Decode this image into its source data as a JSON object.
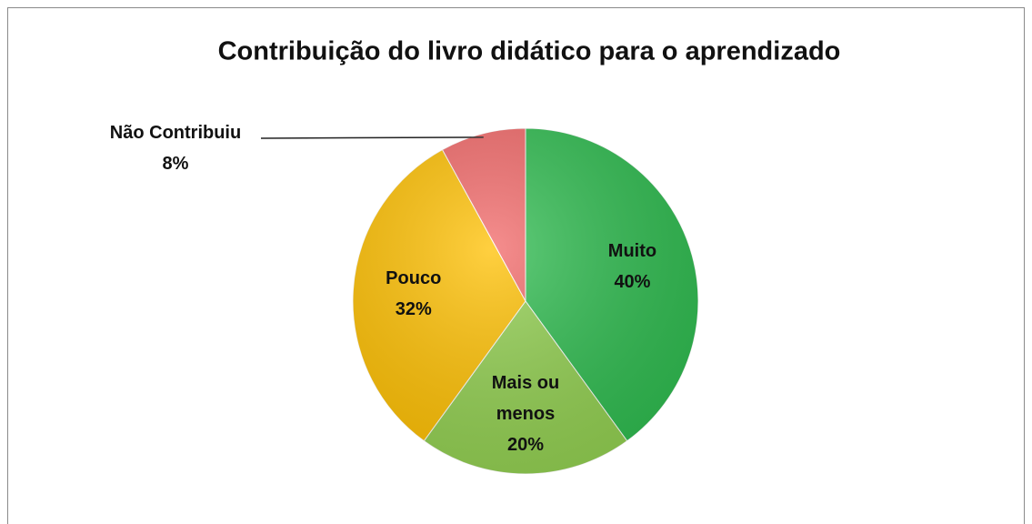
{
  "chart_data": {
    "type": "pie",
    "title": "Contribuição do livro didático para o aprendizado",
    "categories": [
      "Muito",
      "Mais ou menos",
      "Pouco",
      "Não Contribuiu"
    ],
    "values": [
      40,
      20,
      32,
      8
    ],
    "value_labels": [
      "40%",
      "20%",
      "32%",
      "8%"
    ],
    "colors": [
      "#2ebc4f",
      "#92d050",
      "#ffc000",
      "#f26868"
    ]
  }
}
